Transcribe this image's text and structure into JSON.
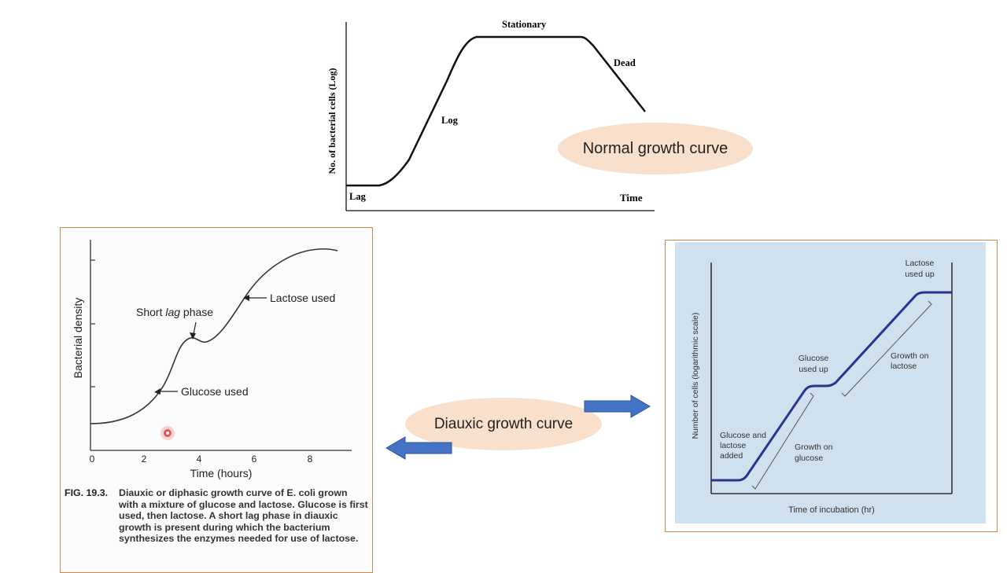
{
  "normal_curve": {
    "y_label": "No. of bacterial cells (Log)",
    "x_label": "Time",
    "phases": {
      "lag": "Lag",
      "log": "Log",
      "stationary": "Stationary",
      "dead": "Dead"
    },
    "bubble": "Normal growth curve"
  },
  "diauxic_bubble": "Diauxic growth curve",
  "left_figure": {
    "y_label": "Bacterial density",
    "x_label": "Time (hours)",
    "x_ticks": [
      "0",
      "2",
      "4",
      "6",
      "8"
    ],
    "annotations": {
      "short_lag_pre": "Short ",
      "short_lag_italic": "lag",
      "short_lag_post": " phase",
      "lactose_used": "Lactose used",
      "glucose_used": "Glucose used"
    },
    "caption_label": "FIG. 19.3.",
    "caption_text": "Diauxic or diphasic growth curve of E. coli grown with a mixture of glucose and lactose. Glucose is first used, then lactose. A short lag phase in diauxic growth is present during which the bacterium synthesizes the enzymes needed for use of lactose."
  },
  "right_figure": {
    "y_label": "Number of cells (logarithmic scale)",
    "x_label": "Time of incubation (hr)",
    "annotations": {
      "lactose_used_up_1": "Lactose",
      "lactose_used_up_2": "used up",
      "glucose_used_up_1": "Glucose",
      "glucose_used_up_2": "used up",
      "growth_lactose_1": "Growth on",
      "growth_lactose_2": "lactose",
      "growth_glucose_1": "Growth on",
      "growth_glucose_2": "glucose",
      "added_1": "Glucose and",
      "added_2": "lactose",
      "added_3": "added"
    }
  },
  "colors": {
    "bubble": "#f8e0cc",
    "arrow": "#4472c4",
    "panel_border": "#c9884d",
    "right_bg": "#cfe0ee",
    "right_curve": "#2e3192",
    "marker": "#e02020"
  }
}
